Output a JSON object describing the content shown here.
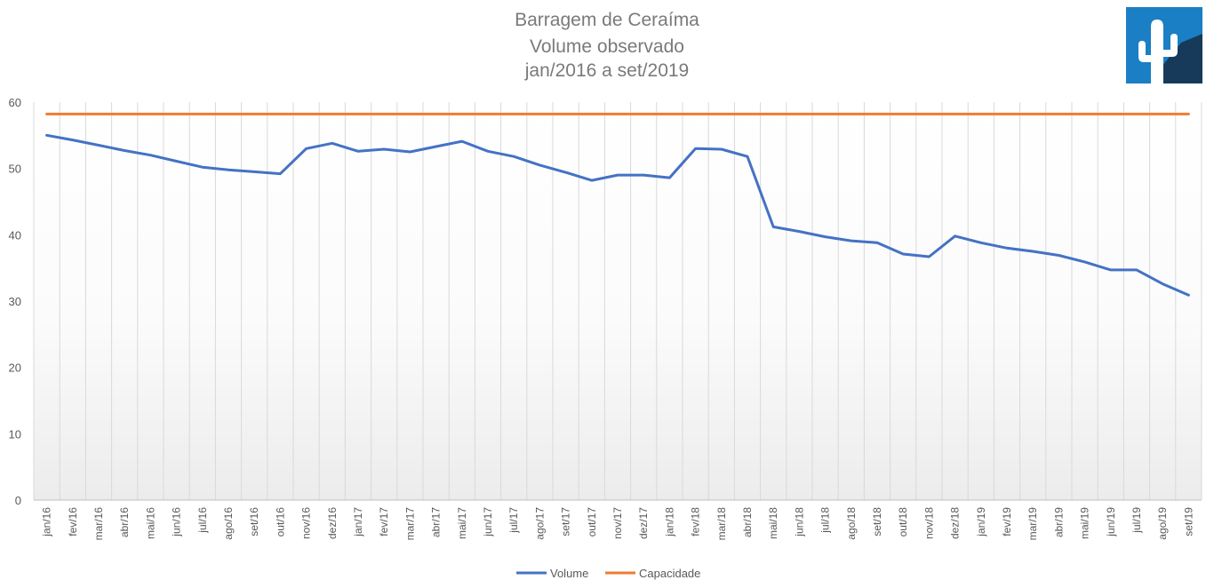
{
  "chart_data": {
    "type": "line",
    "title": "Barragem de Ceraíma",
    "subtitle": [
      "Volume observado",
      "jan/2016 a set/2019"
    ],
    "xlabel": "",
    "ylabel": "",
    "ylim": [
      0,
      60
    ],
    "yticks": [
      0,
      10,
      20,
      30,
      40,
      50,
      60
    ],
    "grid": "vertical",
    "legend": "bottom",
    "categories": [
      "jan/16",
      "fev/16",
      "mar/16",
      "abr/16",
      "mai/16",
      "jun/16",
      "jul/16",
      "ago/16",
      "set/16",
      "out/16",
      "nov/16",
      "dez/16",
      "jan/17",
      "fev/17",
      "mar/17",
      "abr/17",
      "mai/17",
      "jun/17",
      "jul/17",
      "ago/17",
      "set/17",
      "out/17",
      "nov/17",
      "dez/17",
      "jan/18",
      "fev/18",
      "mar/18",
      "abr/18",
      "mai/18",
      "jun/18",
      "jul/18",
      "ago/18",
      "set/18",
      "out/18",
      "nov/18",
      "dez/18",
      "jan/19",
      "fev/19",
      "mar/19",
      "abr/19",
      "mai/19",
      "jun/19",
      "jul/19",
      "ago/19",
      "set/19"
    ],
    "series": [
      {
        "name": "Volume",
        "color": "#4472c4",
        "values": [
          55.0,
          54.3,
          53.5,
          52.7,
          52.0,
          51.1,
          50.2,
          49.8,
          49.5,
          49.2,
          53.0,
          53.8,
          52.6,
          52.9,
          52.5,
          53.3,
          54.1,
          52.6,
          51.8,
          50.5,
          49.4,
          48.2,
          49.0,
          49.0,
          48.6,
          53.0,
          52.9,
          51.8,
          41.2,
          40.5,
          39.7,
          39.1,
          38.8,
          37.1,
          36.7,
          39.8,
          38.8,
          38.0,
          37.5,
          36.9,
          35.9,
          34.7,
          34.7,
          32.6,
          30.9
        ]
      },
      {
        "name": "Capacidade",
        "color": "#ed7d31",
        "values": [
          58.2,
          58.2,
          58.2,
          58.2,
          58.2,
          58.2,
          58.2,
          58.2,
          58.2,
          58.2,
          58.2,
          58.2,
          58.2,
          58.2,
          58.2,
          58.2,
          58.2,
          58.2,
          58.2,
          58.2,
          58.2,
          58.2,
          58.2,
          58.2,
          58.2,
          58.2,
          58.2,
          58.2,
          58.2,
          58.2,
          58.2,
          58.2,
          58.2,
          58.2,
          58.2,
          58.2,
          58.2,
          58.2,
          58.2,
          58.2,
          58.2,
          58.2,
          58.2,
          58.2,
          58.2
        ]
      }
    ]
  },
  "logo": {
    "icon": "cactus-icon",
    "colors": {
      "bg": "#1a7fc4",
      "shade": "#173a5a",
      "fg": "#ffffff"
    }
  }
}
